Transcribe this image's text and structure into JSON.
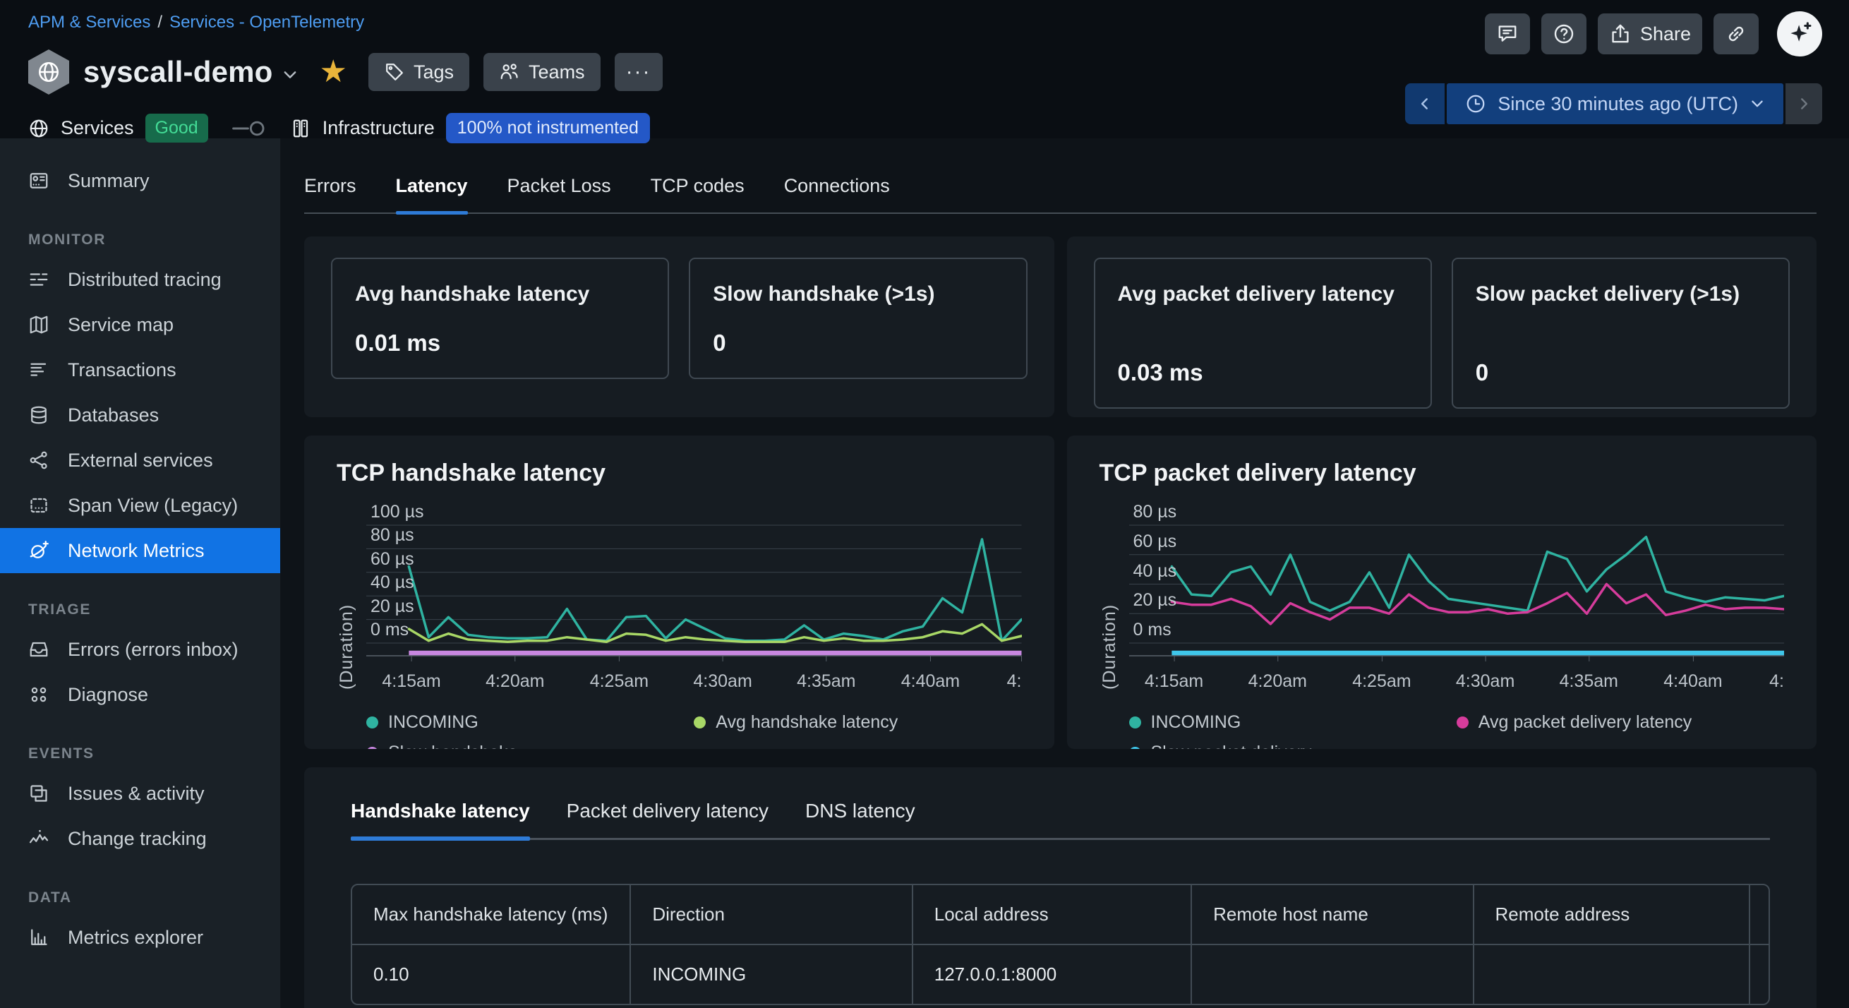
{
  "breadcrumb": {
    "items": [
      "APM & Services",
      "Services - OpenTelemetry"
    ],
    "separator": "/"
  },
  "header_actions": {
    "share_label": "Share"
  },
  "service_header": {
    "title": "syscall-demo",
    "tags_label": "Tags",
    "teams_label": "Teams",
    "more_label": "···"
  },
  "status_bar": {
    "services_label": "Services",
    "services_status": "Good",
    "infrastructure_label": "Infrastructure",
    "infrastructure_badge": "100% not instrumented",
    "time_range": "Since 30 minutes ago (UTC)"
  },
  "sidebar": {
    "sections": [
      {
        "heading": "",
        "items": [
          {
            "label": "Summary",
            "icon": "summary-icon",
            "selected": false
          }
        ]
      },
      {
        "heading": "MONITOR",
        "items": [
          {
            "label": "Distributed tracing",
            "icon": "distributed-tracing-icon",
            "selected": false
          },
          {
            "label": "Service map",
            "icon": "service-map-icon",
            "selected": false
          },
          {
            "label": "Transactions",
            "icon": "transactions-icon",
            "selected": false
          },
          {
            "label": "Databases",
            "icon": "databases-icon",
            "selected": false
          },
          {
            "label": "External services",
            "icon": "external-services-icon",
            "selected": false
          },
          {
            "label": "Span View (Legacy)",
            "icon": "span-view-icon",
            "selected": false
          },
          {
            "label": "Network Metrics",
            "icon": "network-metrics-icon",
            "selected": true
          }
        ]
      },
      {
        "heading": "TRIAGE",
        "items": [
          {
            "label": "Errors (errors inbox)",
            "icon": "errors-inbox-icon",
            "selected": false
          },
          {
            "label": "Diagnose",
            "icon": "diagnose-icon",
            "selected": false
          }
        ]
      },
      {
        "heading": "EVENTS",
        "items": [
          {
            "label": "Issues & activity",
            "icon": "issues-activity-icon",
            "selected": false
          },
          {
            "label": "Change tracking",
            "icon": "change-tracking-icon",
            "selected": false
          }
        ]
      },
      {
        "heading": "DATA",
        "items": [
          {
            "label": "Metrics explorer",
            "icon": "metrics-explorer-icon",
            "selected": false
          }
        ]
      }
    ]
  },
  "main_tabs": [
    {
      "label": "Errors",
      "active": false
    },
    {
      "label": "Latency",
      "active": true
    },
    {
      "label": "Packet Loss",
      "active": false
    },
    {
      "label": "TCP codes",
      "active": false
    },
    {
      "label": "Connections",
      "active": false
    }
  ],
  "stat_cards": {
    "left": [
      {
        "title": "Avg handshake latency",
        "value": "0.01 ms"
      },
      {
        "title": "Slow handshake (>1s)",
        "value": "0"
      }
    ],
    "right": [
      {
        "title": "Avg packet delivery latency",
        "value": "0.03 ms"
      },
      {
        "title": "Slow packet delivery (>1s)",
        "value": "0"
      }
    ]
  },
  "chart_data": [
    {
      "type": "line",
      "title": "TCP handshake latency",
      "ylabel": "(Duration)",
      "unit": "µs",
      "grid": "horizontal",
      "legend_position": "bottom",
      "ylim": [
        0,
        100
      ],
      "y_tick_labels": [
        "100 µs",
        "80 µs",
        "60 µs",
        "40 µs",
        "20 µs",
        "0 ms"
      ],
      "x_tick_labels": [
        "4:15am",
        "4:20am",
        "4:25am",
        "4:30am",
        "4:35am",
        "4:40am",
        "4:"
      ],
      "series": [
        {
          "name": "INCOMING",
          "color": "#2fb3a1",
          "values": [
            65,
            5,
            22,
            7,
            5,
            4,
            4,
            5,
            29,
            3,
            2,
            22,
            23,
            4,
            20,
            12,
            4,
            2,
            2,
            3,
            15,
            3,
            8,
            6,
            3,
            10,
            14,
            38,
            26,
            88,
            2,
            20
          ]
        },
        {
          "name": "Avg handshake latency",
          "color": "#a8d766",
          "values": [
            12,
            2,
            8,
            3,
            2,
            1,
            2,
            2,
            5,
            3,
            1,
            8,
            7,
            2,
            5,
            3,
            2,
            1,
            1,
            1,
            5,
            2,
            4,
            2,
            2,
            3,
            5,
            10,
            8,
            16,
            2,
            6
          ]
        },
        {
          "name": "Slow handshake",
          "color": "#c887e0",
          "style": "flat-baseline",
          "values": [
            0,
            0,
            0,
            0,
            0,
            0,
            0,
            0,
            0,
            0,
            0,
            0,
            0,
            0,
            0,
            0,
            0,
            0,
            0,
            0,
            0,
            0,
            0,
            0,
            0,
            0,
            0,
            0,
            0,
            0,
            0,
            0
          ]
        }
      ]
    },
    {
      "type": "line",
      "title": "TCP packet delivery latency",
      "ylabel": "(Duration)",
      "unit": "µs",
      "grid": "horizontal",
      "legend_position": "bottom",
      "ylim": [
        0,
        80
      ],
      "y_tick_labels": [
        "80 µs",
        "60 µs",
        "40 µs",
        "20 µs",
        "0 ms"
      ],
      "x_tick_labels": [
        "4:15am",
        "4:20am",
        "4:25am",
        "4:30am",
        "4:35am",
        "4:40am",
        "4:"
      ],
      "series": [
        {
          "name": "INCOMING",
          "color": "#2fb3a1",
          "values": [
            52,
            33,
            32,
            48,
            52,
            33,
            60,
            28,
            22,
            28,
            48,
            24,
            60,
            42,
            30,
            28,
            26,
            24,
            22,
            62,
            57,
            35,
            50,
            60,
            72,
            35,
            31,
            28,
            31,
            30,
            29,
            32
          ]
        },
        {
          "name": "Avg packet delivery latency",
          "color": "#d63c9c",
          "values": [
            28,
            26,
            26,
            30,
            25,
            13,
            27,
            21,
            16,
            24,
            24,
            20,
            33,
            24,
            21,
            21,
            23,
            20,
            21,
            27,
            34,
            20,
            40,
            27,
            33,
            19,
            22,
            26,
            23,
            24,
            24,
            23
          ]
        },
        {
          "name": "Slow packet delivery",
          "color": "#3fc6ea",
          "style": "flat-baseline",
          "values": [
            0,
            0,
            0,
            0,
            0,
            0,
            0,
            0,
            0,
            0,
            0,
            0,
            0,
            0,
            0,
            0,
            0,
            0,
            0,
            0,
            0,
            0,
            0,
            0,
            0,
            0,
            0,
            0,
            0,
            0,
            0,
            0
          ]
        }
      ]
    }
  ],
  "detail_tabs": [
    {
      "label": "Handshake latency",
      "active": true
    },
    {
      "label": "Packet delivery latency",
      "active": false
    },
    {
      "label": "DNS latency",
      "active": false
    }
  ],
  "table": {
    "columns": [
      "Max handshake latency (ms)",
      "Direction",
      "Local address",
      "Remote host name",
      "Remote address",
      ""
    ],
    "rows": [
      [
        "0.10",
        "INCOMING",
        "127.0.0.1:8000",
        "",
        "",
        ""
      ]
    ]
  },
  "colors": {
    "accent_blue": "#1173e4",
    "link_blue": "#4e9df2",
    "tab_underline_blue": "#2e7bd7",
    "badge_green_bg": "#176b4b",
    "badge_green_text": "#43dc96",
    "badge_blue_bg": "#2458c7",
    "time_picker_bg": "#123f7d",
    "panel_bg": "#161c22",
    "sidebar_bg": "#1a2127",
    "series_teal": "#2fb3a1",
    "series_green": "#a8d766",
    "series_purple": "#c887e0",
    "series_magenta": "#d63c9c",
    "series_cyan": "#3fc6ea",
    "gridline": "#39424b"
  }
}
